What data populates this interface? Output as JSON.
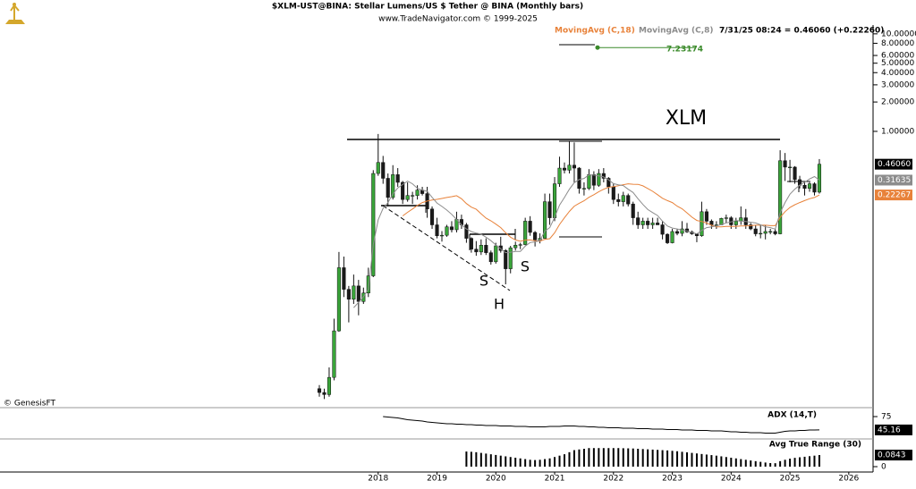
{
  "chart_data": [
    {
      "type": "candlestick",
      "title": "$XLM-UST@BINA:  Stellar Lumens/US $ Tether @ BINA  (Monthly bars)",
      "subtitle": "www.TradeNavigator.com © 1999-2025",
      "quote": "7/31/25 08:24 = 0.46060 (+0.22260)",
      "watermark": "© GenesisFT",
      "annotations": [
        "XLM",
        "S",
        "H",
        "S"
      ],
      "target": 7.23174,
      "target_color": "#3a8a2a",
      "log_scale": true,
      "grid": false,
      "up_color": "#3aa53a",
      "down_color": "#1a1a1a",
      "ylim": [
        0.0015,
        18
      ],
      "yticks": [
        {
          "value": 10,
          "label": "10.00000"
        },
        {
          "value": 8,
          "label": "8.00000"
        },
        {
          "value": 6,
          "label": "6.00000"
        },
        {
          "value": 5,
          "label": "5.00000"
        },
        {
          "value": 4,
          "label": "4.00000"
        },
        {
          "value": 3,
          "label": "3.00000"
        },
        {
          "value": 2,
          "label": "2.00000"
        },
        {
          "value": 1,
          "label": "1.00000"
        }
      ],
      "categories": [
        null,
        null,
        null,
        null,
        null,
        null,
        null,
        null,
        null,
        null,
        null,
        null,
        "2018",
        null,
        null,
        null,
        null,
        null,
        null,
        null,
        null,
        null,
        null,
        null,
        "2019",
        null,
        null,
        null,
        null,
        null,
        null,
        null,
        null,
        null,
        null,
        null,
        "2020",
        null,
        null,
        null,
        null,
        null,
        null,
        null,
        null,
        null,
        null,
        null,
        "2021",
        null,
        null,
        null,
        null,
        null,
        null,
        null,
        null,
        null,
        null,
        null,
        "2022",
        null,
        null,
        null,
        null,
        null,
        null,
        null,
        null,
        null,
        null,
        null,
        "2023",
        null,
        null,
        null,
        null,
        null,
        null,
        null,
        null,
        null,
        null,
        null,
        "2024",
        null,
        null,
        null,
        null,
        null,
        null,
        null,
        null,
        null,
        null,
        null,
        "2025",
        null,
        null,
        null,
        null,
        null,
        null,
        null,
        null,
        null,
        null,
        null,
        "2026"
      ],
      "open": [
        0.0023,
        0.0021,
        0.002,
        0.003,
        0.009,
        0.04,
        0.024,
        0.019,
        0.026,
        0.018,
        0.022,
        0.033,
        0.37,
        0.48,
        0.33,
        0.21,
        0.36,
        0.3,
        0.2,
        0.22,
        0.22,
        0.25,
        0.23,
        0.16,
        0.11,
        0.085,
        0.086,
        0.105,
        0.098,
        0.125,
        0.11,
        0.08,
        0.062,
        0.058,
        0.068,
        0.057,
        0.046,
        0.067,
        0.06,
        0.039,
        0.064,
        0.068,
        0.069,
        0.12,
        0.092,
        0.077,
        0.08,
        0.19,
        0.13,
        0.29,
        0.42,
        0.4,
        0.45,
        0.42,
        0.26,
        0.26,
        0.36,
        0.28,
        0.37,
        0.33,
        0.27,
        0.2,
        0.19,
        0.22,
        0.18,
        0.13,
        0.11,
        0.12,
        0.11,
        0.115,
        0.11,
        0.088,
        0.072,
        0.094,
        0.09,
        0.1,
        0.093,
        0.089,
        0.085,
        0.15,
        0.12,
        0.11,
        0.11,
        0.128,
        0.13,
        0.11,
        0.12,
        0.13,
        0.11,
        0.1,
        0.089,
        0.09,
        0.094,
        0.094,
        0.089,
        0.5,
        0.43,
        0.43,
        0.32,
        0.28,
        0.26,
        0.29,
        0.238,
        null,
        null,
        null,
        null,
        null,
        null
      ],
      "high": [
        0.0025,
        0.0023,
        0.0038,
        0.012,
        0.058,
        0.052,
        0.026,
        0.034,
        0.03,
        0.025,
        0.04,
        0.4,
        0.94,
        0.56,
        0.37,
        0.45,
        0.42,
        0.31,
        0.3,
        0.24,
        0.28,
        0.27,
        0.27,
        0.17,
        0.13,
        0.095,
        0.11,
        0.12,
        0.15,
        0.14,
        0.115,
        0.082,
        0.075,
        0.078,
        0.08,
        0.06,
        0.072,
        0.083,
        0.062,
        0.067,
        0.074,
        0.072,
        0.13,
        0.135,
        0.095,
        0.09,
        0.23,
        0.23,
        0.34,
        0.55,
        0.48,
        0.79,
        0.77,
        0.43,
        0.3,
        0.41,
        0.39,
        0.41,
        0.42,
        0.34,
        0.29,
        0.23,
        0.24,
        0.23,
        0.19,
        0.15,
        0.13,
        0.13,
        0.13,
        0.13,
        0.12,
        0.09,
        0.1,
        0.1,
        0.12,
        0.115,
        0.096,
        0.09,
        0.19,
        0.16,
        0.125,
        0.12,
        0.13,
        0.14,
        0.135,
        0.13,
        0.17,
        0.16,
        0.115,
        0.11,
        0.11,
        0.11,
        0.1,
        0.1,
        0.64,
        0.6,
        0.51,
        0.44,
        0.35,
        0.3,
        0.3,
        0.3,
        0.52,
        null,
        null,
        null,
        null,
        null,
        null
      ],
      "low": [
        0.0019,
        0.0018,
        0.0019,
        0.0028,
        0.0088,
        0.02,
        0.011,
        0.017,
        0.013,
        0.017,
        0.02,
        0.032,
        0.35,
        0.29,
        0.17,
        0.2,
        0.27,
        0.18,
        0.19,
        0.18,
        0.2,
        0.22,
        0.13,
        0.1,
        0.08,
        0.074,
        0.083,
        0.092,
        0.092,
        0.1,
        0.072,
        0.057,
        0.053,
        0.054,
        0.054,
        0.043,
        0.044,
        0.057,
        0.027,
        0.035,
        0.06,
        0.062,
        0.068,
        0.085,
        0.066,
        0.071,
        0.079,
        0.11,
        0.12,
        0.27,
        0.37,
        0.37,
        0.3,
        0.23,
        0.22,
        0.25,
        0.25,
        0.27,
        0.3,
        0.23,
        0.18,
        0.17,
        0.17,
        0.17,
        0.11,
        0.1,
        0.1,
        0.1,
        0.1,
        0.11,
        0.078,
        0.07,
        0.071,
        0.086,
        0.084,
        0.091,
        0.087,
        0.073,
        0.083,
        0.11,
        0.1,
        0.1,
        0.11,
        0.115,
        0.1,
        0.1,
        0.11,
        0.1,
        0.097,
        0.084,
        0.08,
        0.078,
        0.088,
        0.086,
        0.088,
        0.31,
        0.3,
        0.29,
        0.26,
        0.22,
        0.24,
        0.22,
        0.23,
        null,
        null,
        null,
        null,
        null,
        null
      ],
      "close": [
        0.0021,
        0.002,
        0.003,
        0.009,
        0.04,
        0.024,
        0.019,
        0.026,
        0.018,
        0.022,
        0.033,
        0.37,
        0.48,
        0.33,
        0.21,
        0.36,
        0.3,
        0.2,
        0.22,
        0.22,
        0.25,
        0.23,
        0.16,
        0.11,
        0.085,
        0.086,
        0.105,
        0.098,
        0.125,
        0.11,
        0.08,
        0.062,
        0.058,
        0.068,
        0.057,
        0.046,
        0.067,
        0.06,
        0.039,
        0.064,
        0.068,
        0.069,
        0.12,
        0.092,
        0.077,
        0.08,
        0.19,
        0.13,
        0.29,
        0.42,
        0.4,
        0.45,
        0.42,
        0.26,
        0.26,
        0.36,
        0.28,
        0.37,
        0.33,
        0.27,
        0.2,
        0.19,
        0.22,
        0.18,
        0.13,
        0.11,
        0.12,
        0.11,
        0.115,
        0.11,
        0.088,
        0.072,
        0.094,
        0.09,
        0.1,
        0.093,
        0.089,
        0.085,
        0.15,
        0.12,
        0.11,
        0.11,
        0.128,
        0.13,
        0.11,
        0.12,
        0.13,
        0.11,
        0.1,
        0.089,
        0.09,
        0.094,
        0.094,
        0.089,
        0.5,
        0.43,
        0.43,
        0.32,
        0.28,
        0.26,
        0.29,
        0.238,
        0.4606,
        null,
        null,
        null,
        null,
        null,
        null
      ],
      "close_label": "0.46060",
      "series": [
        {
          "name": "MovingAvg (C,18)",
          "color": "#e8823a",
          "values": [
            null,
            null,
            null,
            null,
            null,
            null,
            null,
            null,
            null,
            null,
            null,
            null,
            null,
            null,
            null,
            null,
            null,
            0.136,
            0.148,
            0.16,
            0.174,
            0.186,
            0.193,
            0.198,
            0.201,
            0.205,
            0.21,
            0.214,
            0.219,
            0.204,
            0.182,
            0.167,
            0.159,
            0.143,
            0.129,
            0.121,
            0.112,
            0.103,
            0.0914,
            0.0822,
            0.0771,
            0.0748,
            0.0768,
            0.0771,
            0.0756,
            0.0746,
            0.0782,
            0.0793,
            0.0909,
            0.111,
            0.13,
            0.151,
            0.171,
            0.183,
            0.194,
            0.211,
            0.224,
            0.241,
            0.255,
            0.267,
            0.271,
            0.277,
            0.284,
            0.29,
            0.287,
            0.286,
            0.276,
            0.259,
            0.243,
            0.224,
            0.206,
            0.195,
            0.186,
            0.171,
            0.161,
            0.146,
            0.132,
            0.122,
            0.119,
            0.115,
            0.109,
            0.105,
            0.105,
            0.106,
            0.106,
            0.106,
            0.107,
            0.107,
            0.108,
            0.109,
            0.109,
            0.109,
            0.108,
            0.108,
            0.131,
            0.15,
            0.166,
            0.177,
            0.186,
            0.195,
            0.204,
            0.21,
            0.22267,
            null,
            null,
            null,
            null,
            null,
            null
          ]
        },
        {
          "name": "MovingAvg (C,8)",
          "color": "#8c8c8c",
          "values": [
            null,
            null,
            null,
            null,
            null,
            null,
            null,
            0.0156,
            0.0176,
            0.0201,
            0.0239,
            0.069,
            0.124,
            0.162,
            0.186,
            0.228,
            0.263,
            0.285,
            0.309,
            0.29,
            0.261,
            0.249,
            0.243,
            0.211,
            0.184,
            0.17,
            0.156,
            0.141,
            0.125,
            0.11,
            0.0999,
            0.0939,
            0.0905,
            0.0883,
            0.0823,
            0.0758,
            0.0685,
            0.0623,
            0.0571,
            0.0574,
            0.0586,
            0.0588,
            0.0666,
            0.0724,
            0.0736,
            0.0761,
            0.095,
            0.103,
            0.131,
            0.175,
            0.21,
            0.255,
            0.298,
            0.32,
            0.329,
            0.358,
            0.356,
            0.35,
            0.341,
            0.319,
            0.291,
            0.283,
            0.278,
            0.255,
            0.236,
            0.204,
            0.178,
            0.158,
            0.147,
            0.137,
            0.12,
            0.107,
            0.102,
            0.0999,
            0.0974,
            0.0953,
            0.092,
            0.0889,
            0.0966,
            0.103,
            0.105,
            0.107,
            0.111,
            0.115,
            0.118,
            0.122,
            0.12,
            0.119,
            0.117,
            0.115,
            0.11,
            0.105,
            0.103,
            0.0995,
            0.146,
            0.186,
            0.227,
            0.256,
            0.28,
            0.3,
            0.325,
            0.344,
            0.31635,
            null,
            null,
            null,
            null,
            null,
            null
          ]
        }
      ]
    },
    {
      "type": "line",
      "title": "ADX (14,T)",
      "color": "#000000",
      "ylim": [
        27,
        91
      ],
      "yticks": [
        75
      ],
      "values": [
        null,
        null,
        null,
        null,
        null,
        null,
        null,
        null,
        null,
        null,
        null,
        null,
        null,
        75,
        74,
        73,
        72,
        70,
        68,
        67,
        66,
        65,
        63,
        62,
        61,
        60,
        59,
        59,
        58,
        58,
        57,
        57,
        56,
        56,
        55,
        55,
        55,
        54,
        54,
        54,
        53,
        53,
        53,
        52,
        52,
        52,
        52,
        53,
        53,
        53,
        54,
        54,
        54,
        53,
        53,
        52,
        52,
        51,
        51,
        50,
        50,
        50,
        49,
        49,
        49,
        48,
        48,
        48,
        47,
        47,
        47,
        46,
        46,
        46,
        45,
        45,
        45,
        44,
        44,
        44,
        43,
        43,
        43,
        42,
        41,
        41,
        40,
        40,
        39,
        39,
        39,
        38,
        38,
        38,
        40,
        42,
        43,
        43,
        44,
        44,
        45,
        45,
        45.16,
        null,
        null,
        null,
        null,
        null,
        null
      ]
    },
    {
      "type": "bar",
      "title": "Avg True Range (30)",
      "color": "#000000",
      "ylim": [
        0,
        0.195
      ],
      "yticks": [
        0
      ],
      "values": [
        null,
        null,
        null,
        null,
        null,
        null,
        null,
        null,
        null,
        null,
        null,
        null,
        null,
        null,
        null,
        null,
        null,
        null,
        null,
        null,
        null,
        null,
        null,
        null,
        null,
        null,
        null,
        null,
        null,
        null,
        0.11,
        0.108,
        0.105,
        0.1,
        0.095,
        0.09,
        0.085,
        0.08,
        0.075,
        0.07,
        0.065,
        0.06,
        0.055,
        0.05,
        0.048,
        0.05,
        0.055,
        0.06,
        0.07,
        0.08,
        0.09,
        0.105,
        0.12,
        0.125,
        0.13,
        0.135,
        0.135,
        0.135,
        0.135,
        0.135,
        0.135,
        0.135,
        0.134,
        0.133,
        0.132,
        0.13,
        0.128,
        0.126,
        0.124,
        0.122,
        0.12,
        0.118,
        0.115,
        0.112,
        0.108,
        0.104,
        0.1,
        0.096,
        0.092,
        0.088,
        0.084,
        0.08,
        0.075,
        0.07,
        0.065,
        0.06,
        0.055,
        0.05,
        0.045,
        0.04,
        0.035,
        0.03,
        0.026,
        0.025,
        0.04,
        0.05,
        0.058,
        0.064,
        0.068,
        0.072,
        0.076,
        0.08,
        0.0843,
        null,
        null,
        null,
        null,
        null,
        null
      ]
    }
  ]
}
